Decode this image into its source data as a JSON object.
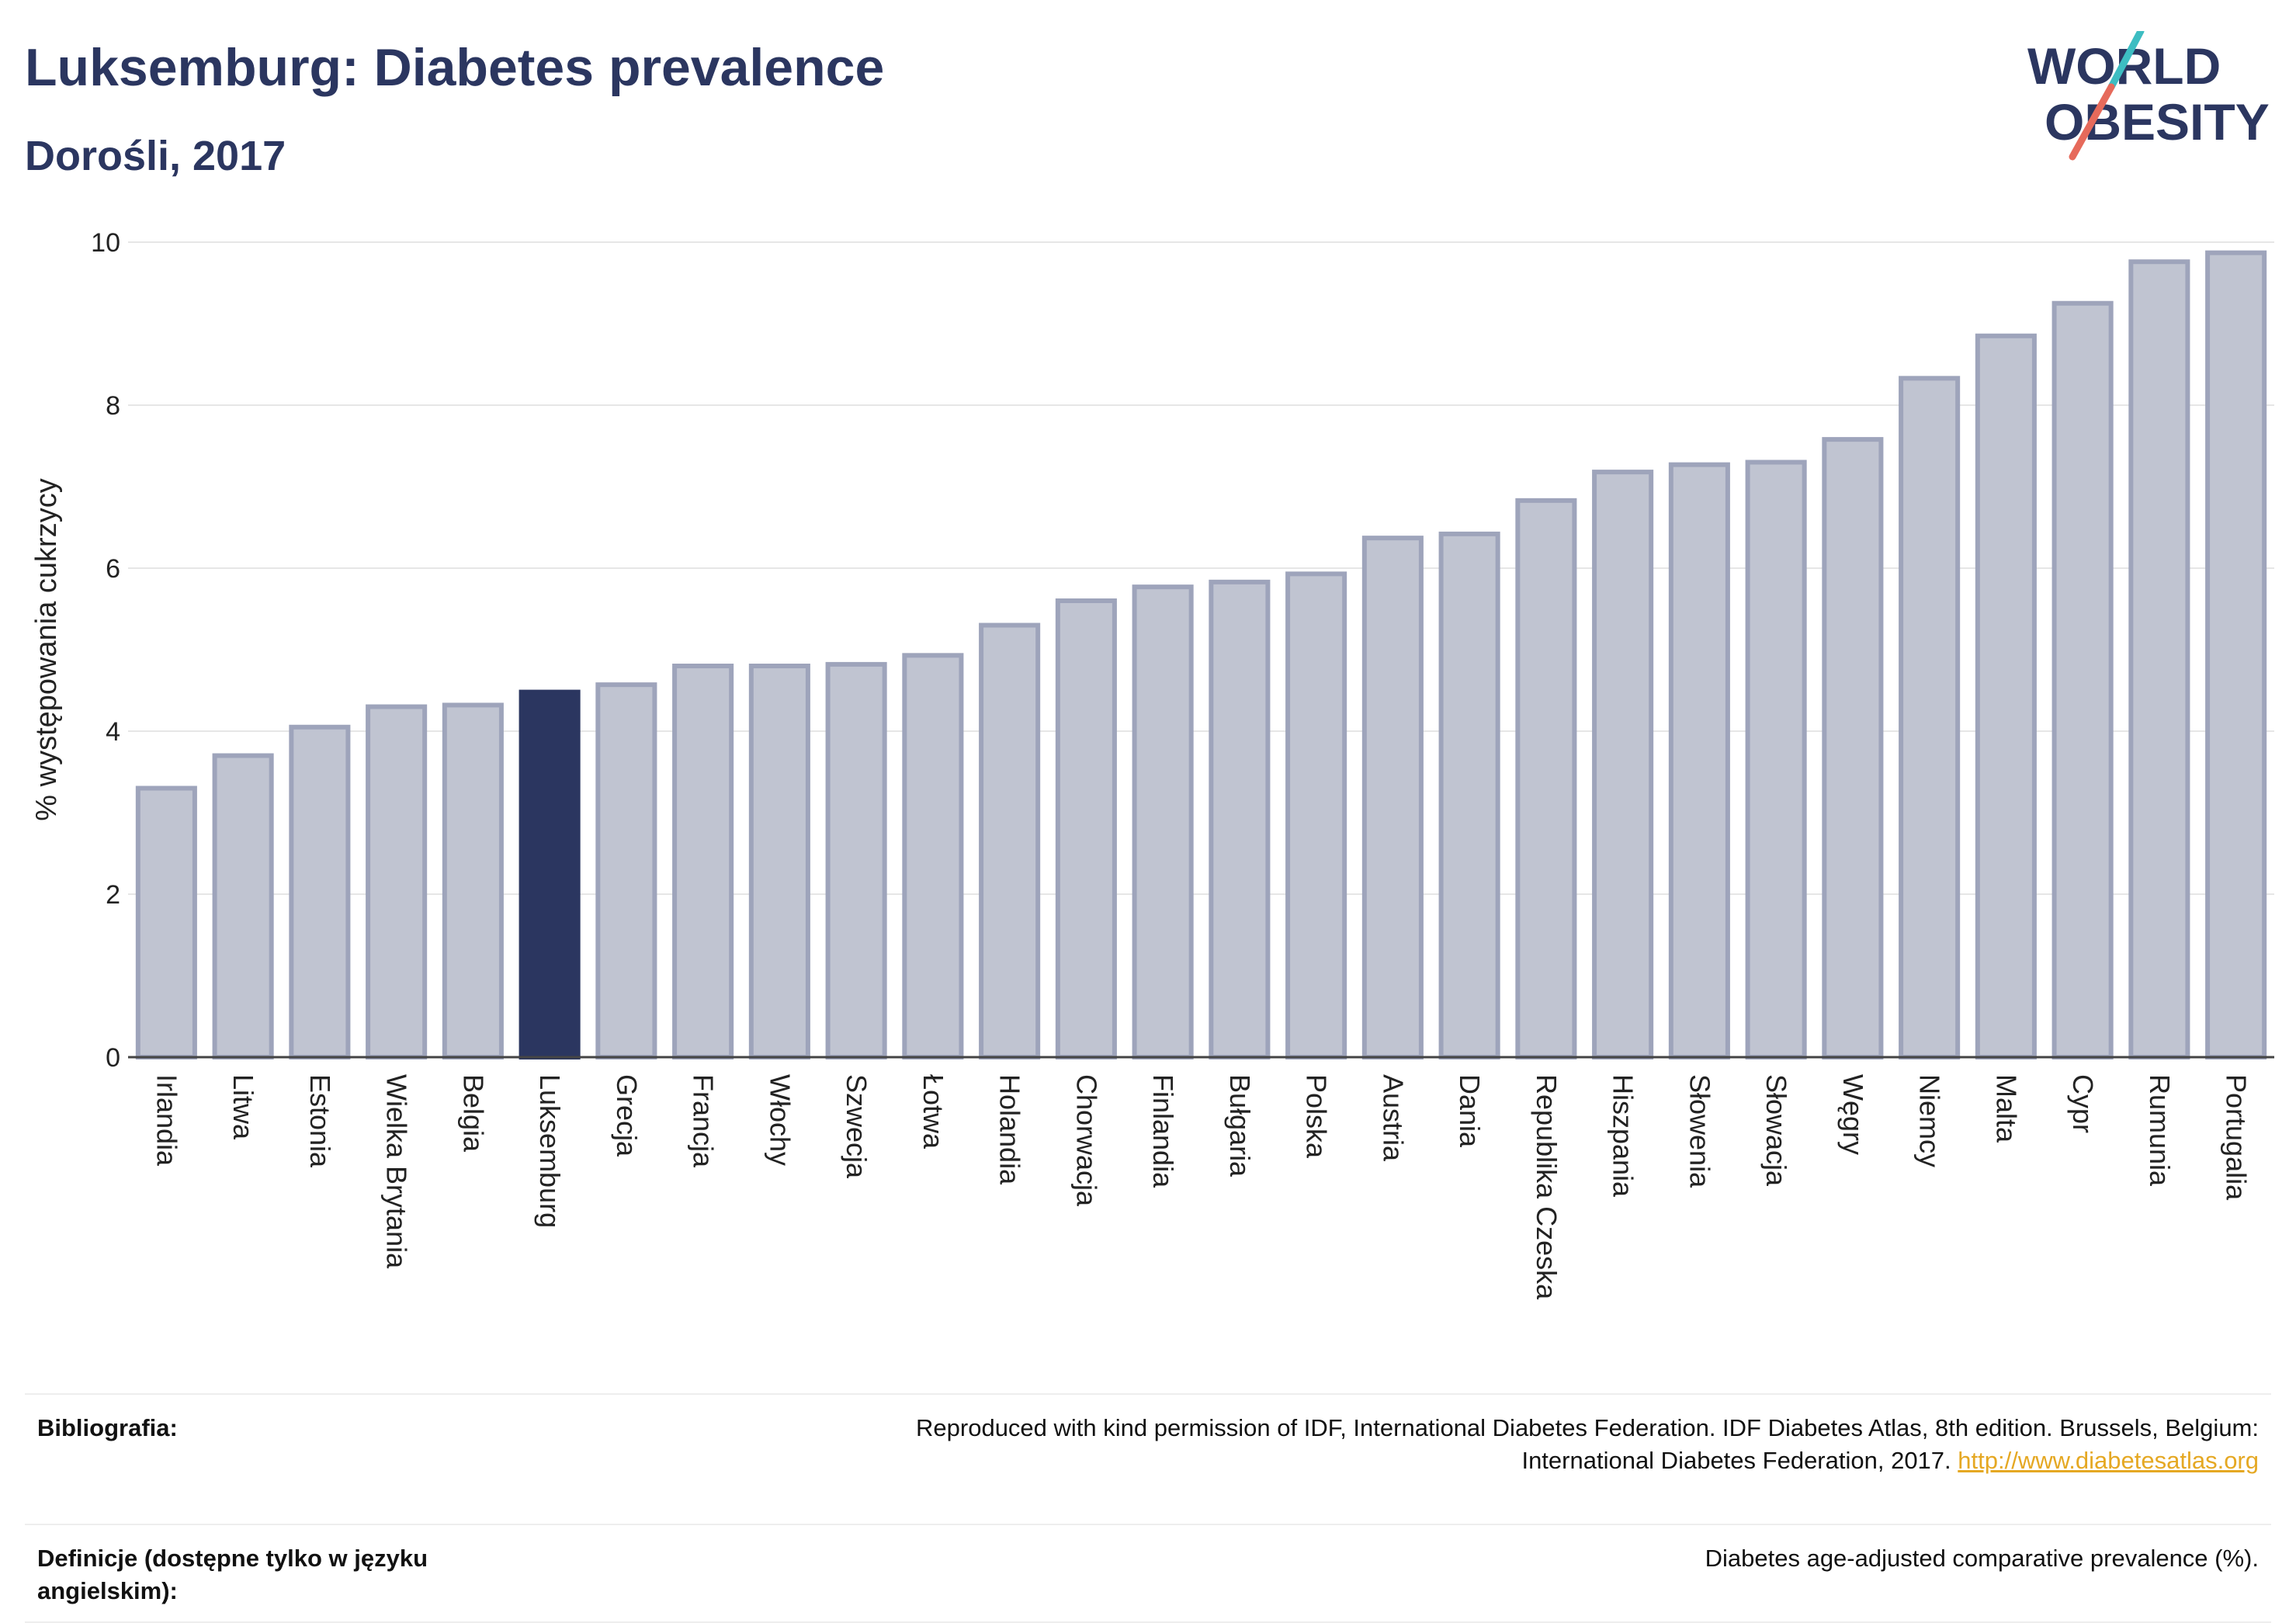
{
  "header": {
    "title": "Luksemburg: Diabetes prevalence",
    "subtitle": "Dorośli, 2017"
  },
  "logo": {
    "line1": "WORLD",
    "line2": "OBESITY",
    "name": "world-obesity-logo"
  },
  "colors": {
    "title": "#2b3660",
    "bar": "#c0c4d1",
    "bar_outline": "#9ea4bb",
    "highlight": "#2b3660",
    "grid": "#e6e6e6",
    "link": "#e5a823",
    "logo_teal": "#3dbdc2",
    "logo_coral": "#e66a5b"
  },
  "chart_data": {
    "type": "bar",
    "ylabel": "% występowania cukrzycy",
    "ylim": [
      0,
      10
    ],
    "yticks": [
      "0",
      "2",
      "4",
      "6",
      "8",
      "10"
    ],
    "grid": true,
    "highlight": "Luksemburg",
    "categories": [
      "Irlandia",
      "Litwa",
      "Estonia",
      "Wielka Brytania",
      "Belgia",
      "Luksemburg",
      "Grecja",
      "Francja",
      "Włochy",
      "Szwecja",
      "Łotwa",
      "Holandia",
      "Chorwacja",
      "Finlandia",
      "Bułgaria",
      "Polska",
      "Austria",
      "Dania",
      "Republika Czeska",
      "Hiszpania",
      "Słowenia",
      "Słowacja",
      "Węgry",
      "Niemcy",
      "Malta",
      "Cypr",
      "Rumunia",
      "Portugalia"
    ],
    "values": [
      3.3,
      3.7,
      4.05,
      4.3,
      4.32,
      4.48,
      4.57,
      4.8,
      4.8,
      4.82,
      4.93,
      5.3,
      5.6,
      5.77,
      5.83,
      5.93,
      6.37,
      6.42,
      6.83,
      7.18,
      7.27,
      7.3,
      7.58,
      8.33,
      8.85,
      9.25,
      9.76,
      9.87
    ]
  },
  "footer": {
    "bibliography_label": "Bibliografia:",
    "bibliography_line1": "Reproduced with kind permission of IDF, International Diabetes Federation. IDF Diabetes Atlas, 8th edition. Brussels, Belgium:",
    "bibliography_line2": "International Diabetes Federation, 2017.",
    "bibliography_link": "http://www.diabetesatlas.org",
    "definitions_label": "Definicje (dostępne tylko w języku angielskim):",
    "definitions_text": "Diabetes age-adjusted comparative prevalence (%)."
  }
}
